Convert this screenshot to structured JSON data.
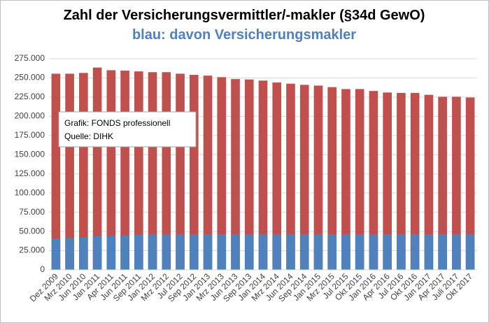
{
  "chart_data": {
    "type": "overlay-bar",
    "title": "Zahl der Versicherungsvermittler/-makler (§34d GewO)",
    "subtitle": "blau: davon Versicherungsmakler",
    "annotations": [
      "Grafik: FONDS professionell",
      "Quelle: DIHK"
    ],
    "categories": [
      "Dez 2009",
      "Mrz 2010",
      "Jun 2010",
      "Jan 2011",
      "Apr 2011",
      "Jun 2011",
      "Sep 2011",
      "Jan 2012",
      "Mrz 2012",
      "Jul 2012",
      "Sep 2012",
      "Jan 2013",
      "Mrz 2013",
      "Jun 2013",
      "Sep 2013",
      "Jan 2014",
      "Mrz 2014",
      "Jun 2014",
      "Sep 2014",
      "Jan 2015",
      "Mrz 2015",
      "Jul 2015",
      "Okt 2015",
      "Jan 2016",
      "Apr 2016",
      "Jul 2016",
      "Okt 2016",
      "Jan 2017",
      "Apr 2017",
      "Juli 2017",
      "Okt 2017"
    ],
    "series": [
      {
        "color": "#c0504d",
        "values": [
          255500,
          255500,
          256500,
          263500,
          260000,
          259500,
          258500,
          257500,
          257500,
          255500,
          254000,
          253000,
          251000,
          248500,
          248000,
          246500,
          244000,
          242500,
          241000,
          240000,
          238000,
          235500,
          235500,
          233000,
          231000,
          230500,
          230500,
          228000,
          225500,
          225500,
          224500
        ]
      },
      {
        "color": "#4f81bd",
        "values": [
          41000,
          41500,
          42500,
          44000,
          44500,
          45000,
          45500,
          46000,
          46000,
          46500,
          46500,
          46500,
          46500,
          46500,
          46500,
          46500,
          46500,
          46500,
          46500,
          46500,
          46500,
          46500,
          46500,
          46500,
          46500,
          46500,
          46500,
          46500,
          46500,
          46500,
          46500
        ]
      }
    ],
    "ylim": [
      0,
      275000
    ],
    "yticks": [
      0,
      {
        "value": 25000,
        "label": "25.000"
      },
      {
        "value": 50000,
        "label": "50.000"
      },
      {
        "value": 75000,
        "label": "75.000"
      },
      {
        "value": 100000,
        "label": "100.000"
      },
      {
        "value": 125000,
        "label": "125.000"
      },
      {
        "value": 150000,
        "label": "150.000"
      },
      {
        "value": 175000,
        "label": "175.000"
      },
      {
        "value": 200000,
        "label": "200.000"
      },
      {
        "value": 225000,
        "label": "225.000"
      },
      {
        "value": 250000,
        "label": "250.000"
      },
      {
        "value": 275000,
        "label": "275.000"
      }
    ],
    "grid": true
  }
}
